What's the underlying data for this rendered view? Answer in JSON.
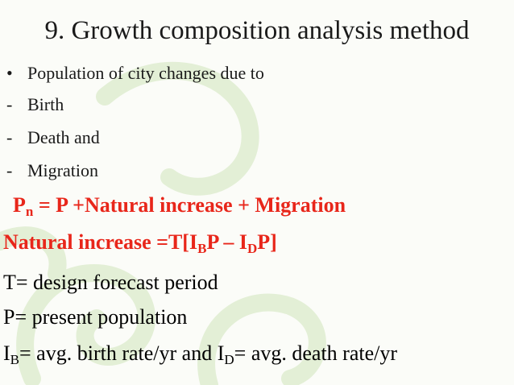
{
  "title": "9. Growth composition analysis method",
  "bullets": [
    {
      "marker": "•",
      "text": "Population of city changes due to"
    },
    {
      "marker": "-",
      "text": "Birth"
    },
    {
      "marker": "-",
      "text": "Death and"
    },
    {
      "marker": "-",
      "text": "Migration"
    }
  ],
  "statements": [
    {
      "color": "#e8261a",
      "bold": true,
      "segments": [
        {
          "text": "P"
        },
        {
          "text": "n",
          "sub": true
        },
        {
          "text": " = P +Natural increase + Migration"
        }
      ]
    },
    {
      "color": "#e8261a",
      "bold": true,
      "segments": [
        {
          "text": "Natural increase =T[I"
        },
        {
          "text": "B",
          "sub": true
        },
        {
          "text": "P – I"
        },
        {
          "text": "D",
          "sub": true
        },
        {
          "text": "P]"
        }
      ]
    },
    {
      "color": "#000000",
      "bold": false,
      "segments": [
        {
          "text": "T= design forecast period"
        }
      ]
    },
    {
      "color": "#000000",
      "bold": false,
      "segments": [
        {
          "text": "P= present population"
        }
      ]
    },
    {
      "color": "#000000",
      "bold": false,
      "segments": [
        {
          "text": "I"
        },
        {
          "text": "B",
          "sub": true
        },
        {
          "text": "= avg. birth rate/yr and I"
        },
        {
          "text": "D",
          "sub": true
        },
        {
          "text": "= avg. death rate/yr"
        }
      ]
    }
  ]
}
